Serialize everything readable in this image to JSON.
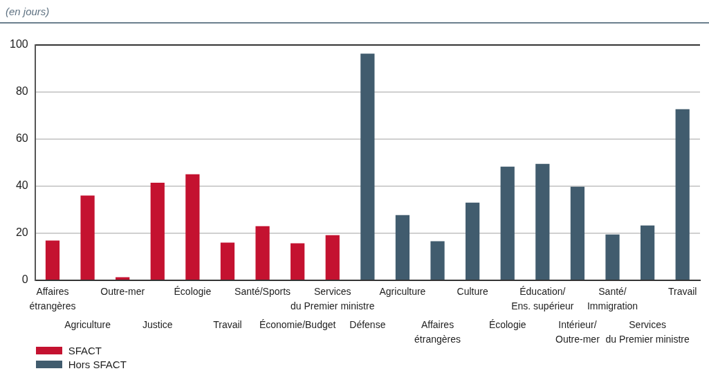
{
  "chart_data": {
    "type": "bar",
    "ylabel": "(en jours)",
    "categories": [
      "Affaires\nétrangères",
      "Agriculture",
      "Outre-mer",
      "Justice",
      "Écologie",
      "Travail",
      "Santé/Sports",
      "Économie/Budget",
      "Services\ndu Premier ministre",
      "Défense",
      "Agriculture",
      "Affaires\nétrangères",
      "Culture",
      "Écologie",
      "Éducation/\nEns. supérieur",
      "Intérieur/\nOutre-mer",
      "Santé/\nImmigration",
      "Services\ndu Premier ministre",
      "Travail"
    ],
    "series": [
      {
        "name": "SFACT",
        "color": "#c41230",
        "values": [
          16.9,
          36.0,
          1.3,
          41.5,
          45.1,
          16.0,
          23.0,
          15.7,
          19.2,
          null,
          null,
          null,
          null,
          null,
          null,
          null,
          null,
          null,
          null
        ]
      },
      {
        "name": "Hors SFACT",
        "color": "#415c6e",
        "values": [
          null,
          null,
          null,
          null,
          null,
          null,
          null,
          null,
          null,
          96.3,
          27.7,
          16.6,
          33.0,
          48.3,
          49.5,
          39.8,
          19.5,
          23.3,
          72.7
        ]
      }
    ],
    "ylim": [
      0,
      100
    ],
    "yticks": [
      0,
      20,
      40,
      60,
      80,
      100
    ],
    "grid": "y",
    "legend": "bottom left"
  }
}
